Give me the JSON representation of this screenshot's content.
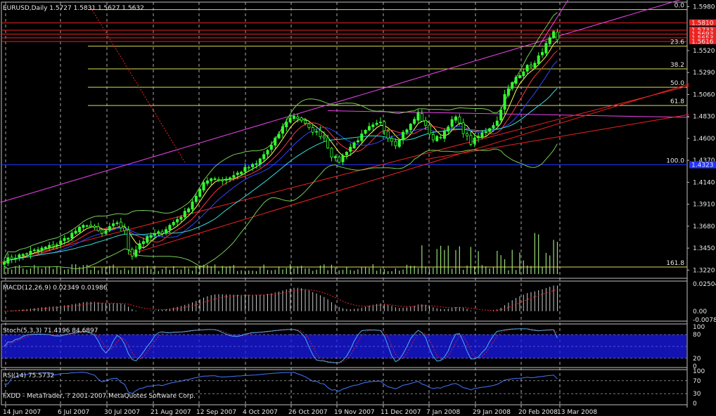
{
  "colors": {
    "background": "#000000",
    "panel_border": "#c0c0c0",
    "grid": "#c8c8c8",
    "bull": "#33ff33",
    "bear": "#33ff33",
    "volume": "#99dd77",
    "bollinger": "#77cc55",
    "ma_fast": "#ffff55",
    "ma_mid": "#ff3344",
    "ma_slow": "#3344ff",
    "ma_long": "#33dddd",
    "fib": "#dddd55",
    "trend_magenta": "#ee44ee",
    "trend_red": "#ee2222",
    "support_blue": "#2233ff",
    "price_tag_red": "#ee2222",
    "price_tag_blue": "#2233ff",
    "macd_hist": "#cccccc",
    "macd_signal": "#ee2222",
    "stoch_main": "#55aaee",
    "stoch_signal": "#ee2222",
    "stoch_zone": "#1a1aee",
    "rsi_line": "#4477ff",
    "text": "#e8e8e8"
  },
  "main": {
    "title": "EURUSD,Daily  1.5727 1.5831 1.5627 1.5632",
    "price_ticks": [
      "1.5980",
      "1.5520",
      "1.5290",
      "1.5060",
      "1.4830",
      "1.4600",
      "1.4370",
      "1.4140",
      "1.3910",
      "1.3680",
      "1.3450",
      "1.3220"
    ],
    "price_tags_red": [
      "1.5810",
      "1.5733",
      "1.5693",
      "1.5653",
      "1.5616"
    ],
    "price_tag_blue": "1.4323",
    "fib_labels": [
      "0.0",
      "23.6",
      "38.2",
      "50.0",
      "61.8",
      "100.0",
      "161.8"
    ]
  },
  "macd": {
    "label": "MACD(12,26,9) 0.02349 0.01986",
    "ticks": [
      "0.02504",
      "0.00",
      "-0.00784"
    ]
  },
  "stoch": {
    "label": "Stoch(5,3,3) 71.4196 84.6897",
    "ticks": [
      "100",
      "80",
      "20",
      "0"
    ]
  },
  "rsi": {
    "label": "RSI(14) 75.5732",
    "ticks": [
      "100",
      "70",
      "30",
      "0"
    ],
    "footer": "FXDD - MetaTrader, ? 2001-2007 MetaQuotes Software Corp."
  },
  "chart_data": {
    "type": "candlestick",
    "symbol": "EURUSD",
    "timeframe": "Daily",
    "ohlc_last": {
      "open": 1.5727,
      "high": 1.5831,
      "low": 1.5627,
      "close": 1.5632
    },
    "x_ticks": [
      "14 Jun 2007",
      "6 Jul 2007",
      "30 Jul 2007",
      "21 Aug 2007",
      "12 Sep 2007",
      "4 Oct 2007",
      "26 Oct 2007",
      "19 Nov 2007",
      "11 Dec 2007",
      "7 Jan 2008",
      "29 Jan 2008",
      "20 Feb 2008",
      "13 Mar 2008"
    ],
    "ylim": [
      1.3134,
      1.6028
    ],
    "close_path": [
      [
        0,
        1.332
      ],
      [
        8,
        1.342
      ],
      [
        14,
        1.349
      ],
      [
        17,
        1.357
      ],
      [
        19,
        1.363
      ],
      [
        22,
        1.37
      ],
      [
        24,
        1.365
      ],
      [
        26,
        1.36
      ],
      [
        28,
        1.366
      ],
      [
        30,
        1.372
      ],
      [
        32,
        1.362
      ],
      [
        33,
        1.344
      ],
      [
        34,
        1.338
      ],
      [
        36,
        1.35
      ],
      [
        39,
        1.358
      ],
      [
        42,
        1.362
      ],
      [
        45,
        1.372
      ],
      [
        48,
        1.382
      ],
      [
        51,
        1.4
      ],
      [
        53,
        1.412
      ],
      [
        55,
        1.419
      ],
      [
        58,
        1.416
      ],
      [
        61,
        1.421
      ],
      [
        64,
        1.428
      ],
      [
        67,
        1.433
      ],
      [
        69,
        1.443
      ],
      [
        71,
        1.452
      ],
      [
        73,
        1.465
      ],
      [
        75,
        1.478
      ],
      [
        77,
        1.484
      ],
      [
        79,
        1.479
      ],
      [
        81,
        1.47
      ],
      [
        83,
        1.466
      ],
      [
        85,
        1.461
      ],
      [
        87,
        1.442
      ],
      [
        89,
        1.436
      ],
      [
        91,
        1.447
      ],
      [
        94,
        1.459
      ],
      [
        97,
        1.471
      ],
      [
        100,
        1.476
      ],
      [
        102,
        1.462
      ],
      [
        104,
        1.454
      ],
      [
        106,
        1.466
      ],
      [
        108,
        1.474
      ],
      [
        110,
        1.486
      ],
      [
        112,
        1.472
      ],
      [
        114,
        1.459
      ],
      [
        116,
        1.462
      ],
      [
        118,
        1.474
      ],
      [
        120,
        1.482
      ],
      [
        122,
        1.467
      ],
      [
        124,
        1.455
      ],
      [
        126,
        1.462
      ],
      [
        128,
        1.468
      ],
      [
        131,
        1.478
      ],
      [
        133,
        1.505
      ],
      [
        136,
        1.524
      ],
      [
        139,
        1.535
      ],
      [
        141,
        1.538
      ],
      [
        143,
        1.552
      ],
      [
        146,
        1.57
      ],
      [
        147,
        1.563
      ]
    ],
    "indicators": {
      "macd": {
        "params": [
          12,
          26,
          9
        ],
        "main": 0.02349,
        "signal": 0.01986,
        "range": [
          -0.00784,
          0.02504
        ]
      },
      "stochastic": {
        "params": [
          5,
          3,
          3
        ],
        "k": 71.4196,
        "d": 84.6897,
        "levels": [
          20,
          80
        ],
        "range": [
          0,
          100
        ]
      },
      "rsi": {
        "period": 14,
        "value": 75.5732,
        "levels": [
          30,
          70
        ],
        "range": [
          0,
          100
        ]
      }
    },
    "fibonacci": {
      "high": 1.595,
      "low": 1.4323,
      "levels": [
        0.0,
        23.6,
        38.2,
        50.0,
        61.8,
        100.0,
        161.8
      ]
    },
    "support_level": 1.4323,
    "resistance_levels": [
      1.581,
      1.5733,
      1.5693,
      1.5653,
      1.5616
    ]
  }
}
